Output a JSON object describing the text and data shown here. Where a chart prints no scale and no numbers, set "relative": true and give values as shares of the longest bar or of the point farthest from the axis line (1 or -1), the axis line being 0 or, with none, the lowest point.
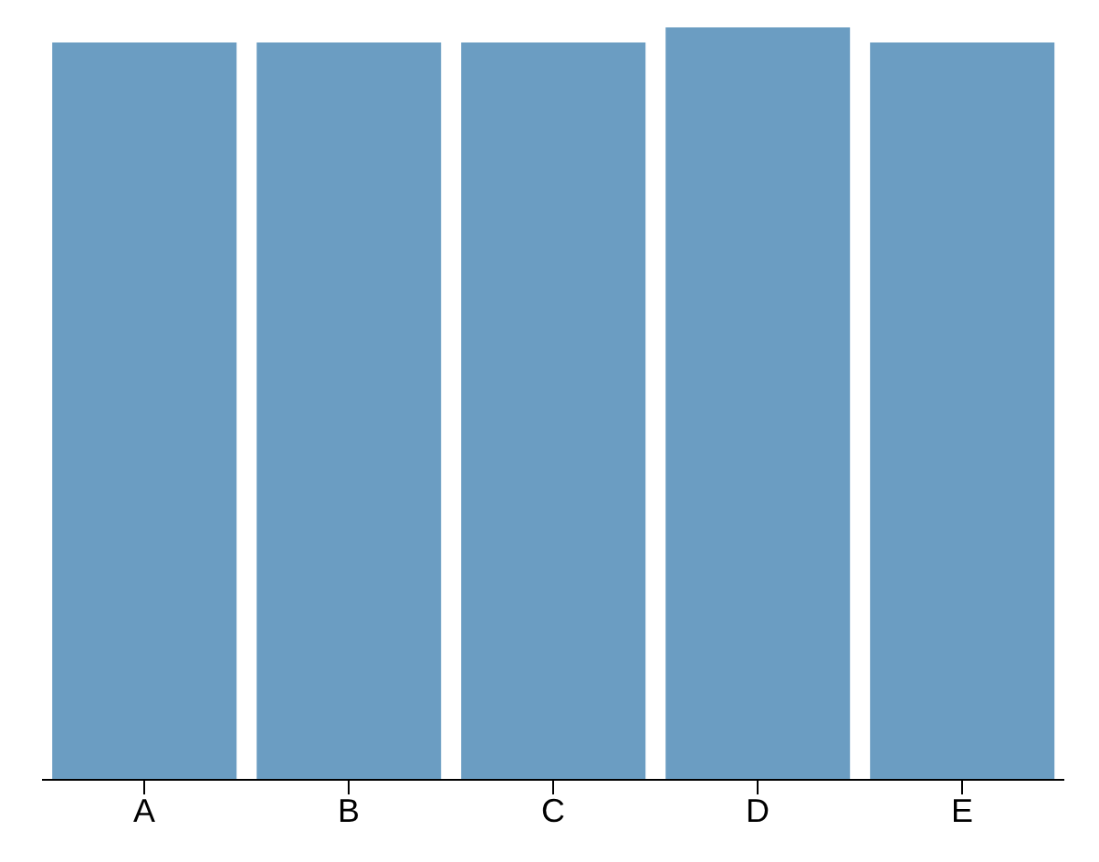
{
  "chart_data": {
    "type": "bar",
    "relative": true,
    "categories": [
      "A",
      "B",
      "C",
      "D",
      "E"
    ],
    "values": [
      0.98,
      0.98,
      0.98,
      1,
      0.98
    ],
    "color": "#6b9dc2",
    "grid": false
  }
}
